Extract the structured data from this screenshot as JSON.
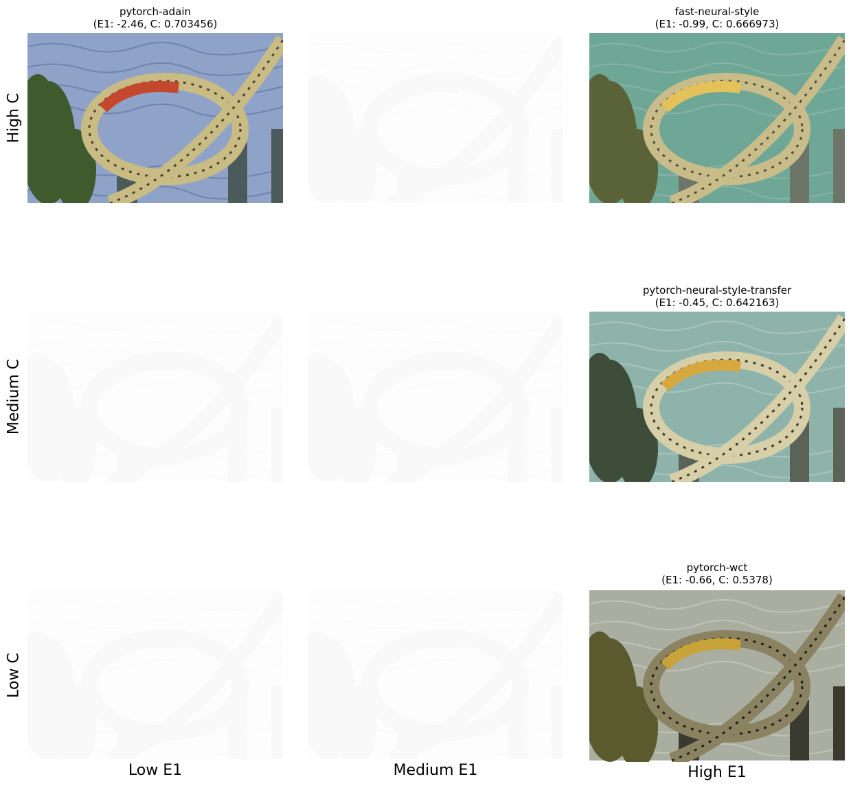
{
  "figure": {
    "row_labels": [
      "High C",
      "Medium C",
      "Low C"
    ],
    "column_labels": [
      "Low E1",
      "Medium E1",
      "High E1"
    ],
    "panels": [
      {
        "title": "pytorch-adain",
        "subtitle": "(E1: -2.46, C: 0.703456)"
      },
      {
        "title": "fast-neural-style",
        "subtitle": "(E1: -0.99, C: 0.666973)"
      },
      {
        "title": "pytorch-neural-style-transfer",
        "subtitle": "(E1: -0.45, C: 0.642163)"
      },
      {
        "title": "pytorch-wct",
        "subtitle": "(E1: -0.66, C: 0.5378)"
      }
    ]
  }
}
